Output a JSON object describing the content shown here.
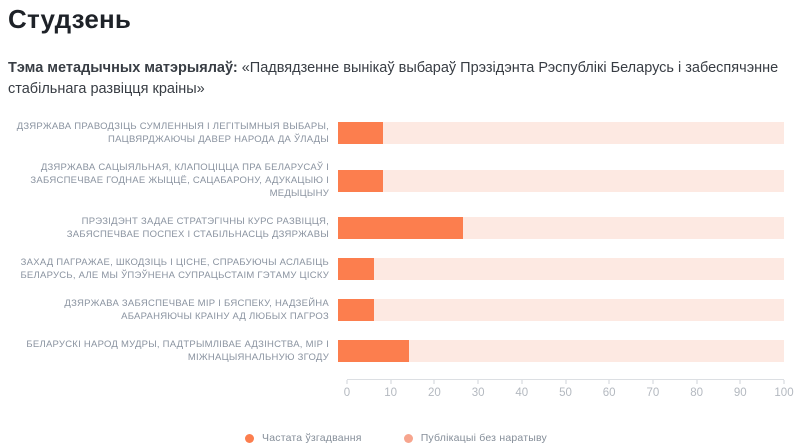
{
  "header": {
    "title": "Студзень",
    "theme_label": "Тэма метадычных матэрыялаў:",
    "theme_text": "«Падвядзенне вынікаў выбараў Прэзідэнта Рэспублікі Беларусь і забеспячэнне стабільнага развіцця краіны»"
  },
  "chart_data": {
    "type": "bar",
    "orientation": "horizontal",
    "stacked": true,
    "title": "",
    "xlabel": "",
    "ylabel": "",
    "categories": [
      "ДЗЯРЖАВА ПРАВОДЗІЦЬ СУМЛЕННЫЯ І ЛЕГІТЫМНЫЯ ВЫБАРЫ, ПАЦВЯРДЖАЮЧЫ ДАВЕР НАРОДА ДА ЎЛАДЫ",
      "ДЗЯРЖАВА САЦЫЯЛЬНАЯ, КЛАПОЦІЦЦА ПРА БЕЛАРУСАЎ І ЗАБЯСПЕЧВАЕ ГОДНАЕ ЖЫЦЦЁ, САЦАБАРОНУ, АДУКАЦЫЮ І МЕДЫЦЫНУ",
      "ПРЭЗІДЭНТ ЗАДАЕ СТРАТЭГІЧНЫ КУРС РАЗВІЦЦЯ, ЗАБЯСПЕЧВАЕ ПОСПЕХ І СТАБІЛЬНАСЦЬ ДЗЯРЖАВЫ",
      "ЗАХАД ПАГРАЖАЕ, ШКОДЗІЦЬ І ЦІСНЕ, СПРАБУЮЧЫ АСЛАБІЦЬ БЕЛАРУСЬ, АЛЕ МЫ ЎПЭЎНЕНА СУПРАЦЬСТАІМ ГЭТАМУ ЦІСКУ",
      "ДЗЯРЖАВА ЗАБЯСПЕЧВАЕ МІР І БЯСПЕКУ, НАДЗЕЙНА АБАРАНЯЮЧЫ КРАІНУ АД ЛЮБЫХ ПАГРОЗ",
      "БЕЛАРУСКІ НАРОД МУДРЫ, ПАДТРЫМЛІВАЕ АДЗІНСТВА, МІР І МІЖНАЦЫЯНАЛЬНУЮ ЗГОДУ"
    ],
    "series": [
      {
        "name": "Частата ўзгадвання",
        "color": "#FC7E4E",
        "legend_color": "#FC7E4E",
        "values": [
          10,
          10,
          28,
          8,
          8,
          16
        ]
      },
      {
        "name": "Публікацыі без наратыву",
        "color": "#FDE9E2",
        "legend_color": "#F7A58E",
        "values": [
          90,
          90,
          72,
          92,
          92,
          84
        ]
      }
    ],
    "xlim": [
      0,
      100
    ],
    "xticks": [
      0,
      10,
      20,
      30,
      40,
      50,
      60,
      70,
      80,
      90,
      100
    ],
    "grid": false,
    "legend_position": "bottom"
  }
}
